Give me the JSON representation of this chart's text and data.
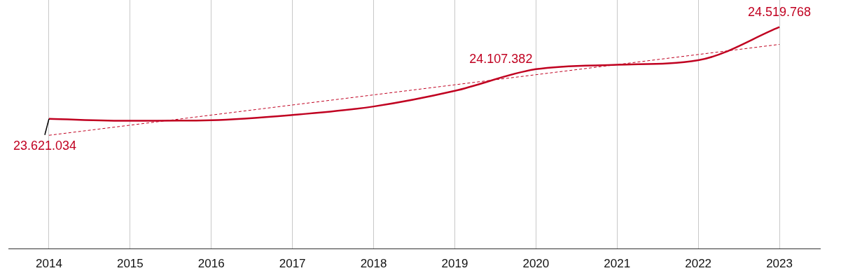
{
  "chart_data": {
    "type": "line",
    "categories": [
      "2014",
      "2015",
      "2016",
      "2017",
      "2018",
      "2019",
      "2020",
      "2021",
      "2022",
      "2023"
    ],
    "tick_labels": "x",
    "grid": "x",
    "marker": "none",
    "series": [
      {
        "color": "#c00020",
        "values": [
          23621034,
          23602000,
          23608000,
          23659000,
          23742000,
          23895000,
          24107382,
          24150000,
          24195000,
          24519768
        ],
        "value_labels": [
          "23.621.034",
          null,
          null,
          null,
          null,
          null,
          "24.107.382",
          null,
          null,
          "24.519.768"
        ]
      },
      {
        "color": "#c00020",
        "line_style": "dashed",
        "values": [
          23460000,
          23558900,
          23657800,
          23756700,
          23855600,
          23954400,
          24053300,
          24152200,
          24251100,
          24350000
        ]
      }
    ]
  }
}
